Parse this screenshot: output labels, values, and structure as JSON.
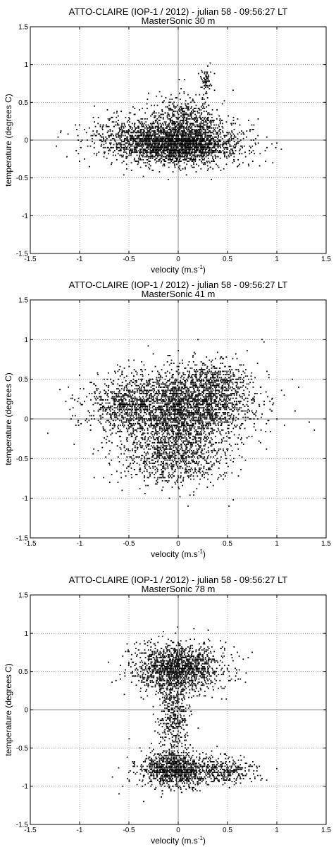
{
  "chart_data": [
    {
      "type": "scatter",
      "title": "ATTO-CLAIRE (IOP-1 / 2012) - julian 58 - 09:56:27 LT",
      "subtitle": "MasterSonic 30 m",
      "xlabel": "velocity (m.s",
      "xlabel_sup": "-1",
      "xlabel_end": ")",
      "ylabel": "temperature (degrees C)",
      "xlim": [
        -1.5,
        1.5
      ],
      "ylim": [
        -1.5,
        1.5
      ],
      "xticks": [
        -1.5,
        -1,
        -0.5,
        0,
        0.5,
        1,
        1.5
      ],
      "yticks": [
        -1.5,
        -1,
        -0.5,
        0,
        0.5,
        1,
        1.5
      ],
      "grid": true,
      "marker_color": "#000000",
      "clusters": [
        {
          "cx": 0.0,
          "cy": -0.05,
          "sx": 0.3,
          "sy": 0.14,
          "n": 2400
        },
        {
          "cx": -0.55,
          "cy": 0.05,
          "sx": 0.22,
          "sy": 0.14,
          "n": 350
        },
        {
          "cx": 0.05,
          "cy": 0.3,
          "sx": 0.18,
          "sy": 0.16,
          "n": 450
        },
        {
          "cx": 0.28,
          "cy": 0.78,
          "sx": 0.03,
          "sy": 0.08,
          "n": 70
        }
      ],
      "points": [
        [
          -1.0,
          0.2
        ],
        [
          -0.95,
          -0.25
        ],
        [
          0.95,
          -0.05
        ],
        [
          1.0,
          -0.04
        ],
        [
          -0.9,
          -0.35
        ],
        [
          -0.85,
          0.45
        ],
        [
          0.6,
          -0.35
        ],
        [
          0.9,
          -0.1
        ],
        [
          0.3,
          0.98
        ],
        [
          0.27,
          0.9
        ]
      ]
    },
    {
      "type": "scatter",
      "title": "ATTO-CLAIRE (IOP-1 / 2012) - julian 58 - 09:56:27 LT",
      "subtitle": "MasterSonic 41 m",
      "xlabel": "velocity (m.s",
      "xlabel_sup": "-1",
      "xlabel_end": ")",
      "ylabel": "temperature (degrees C)",
      "xlim": [
        -1.5,
        1.5
      ],
      "ylim": [
        -1.5,
        1.5
      ],
      "xticks": [
        -1.5,
        -1,
        -0.5,
        0,
        0.5,
        1,
        1.5
      ],
      "yticks": [
        -1.5,
        -1,
        -0.5,
        0,
        0.5,
        1,
        1.5
      ],
      "grid": true,
      "marker_color": "#000000",
      "clusters": [
        {
          "cx": 0.0,
          "cy": 0.15,
          "sx": 0.38,
          "sy": 0.22,
          "n": 2600
        },
        {
          "cx": -0.05,
          "cy": -0.45,
          "sx": 0.28,
          "sy": 0.2,
          "n": 1000
        },
        {
          "cx": 0.35,
          "cy": 0.45,
          "sx": 0.2,
          "sy": 0.15,
          "n": 500
        },
        {
          "cx": -0.6,
          "cy": 0.2,
          "sx": 0.18,
          "sy": 0.15,
          "n": 300
        }
      ],
      "points": [
        [
          -1.2,
          0.37
        ],
        [
          0.85,
          1.0
        ],
        [
          0.87,
          0.97
        ],
        [
          0.2,
          1.0
        ],
        [
          0.95,
          0.1
        ],
        [
          -1.0,
          0.55
        ],
        [
          0.1,
          -1.1
        ],
        [
          0.95,
          0.25
        ]
      ]
    },
    {
      "type": "scatter",
      "title": "ATTO-CLAIRE (IOP-1 / 2012) - julian 58 - 09:56:27 LT",
      "subtitle": "MasterSonic 78 m",
      "xlabel": "velocity (m.s",
      "xlabel_sup": "-1",
      "xlabel_end": ")",
      "ylabel": "temperature (degrees C)",
      "xlim": [
        -1.5,
        1.5
      ],
      "ylim": [
        -1.5,
        1.5
      ],
      "xticks": [
        -1.5,
        -1,
        -0.5,
        0,
        0.5,
        1,
        1.5
      ],
      "yticks": [
        -1.5,
        -1,
        -0.5,
        0,
        0.5,
        1,
        1.5
      ],
      "grid": true,
      "marker_color": "#000000",
      "clusters": [
        {
          "cx": 0.0,
          "cy": 0.55,
          "sx": 0.22,
          "sy": 0.16,
          "n": 1500
        },
        {
          "cx": -0.05,
          "cy": -0.78,
          "sx": 0.18,
          "sy": 0.12,
          "n": 1000
        },
        {
          "cx": 0.4,
          "cy": -0.8,
          "sx": 0.2,
          "sy": 0.08,
          "n": 350
        },
        {
          "cx": -0.05,
          "cy": -0.1,
          "sx": 0.08,
          "sy": 0.28,
          "n": 400
        }
      ],
      "points": [
        [
          0.75,
          0.75
        ],
        [
          1.0,
          -0.77
        ],
        [
          -0.6,
          -1.1
        ],
        [
          0.6,
          0.75
        ],
        [
          -0.35,
          -1.2
        ],
        [
          0.85,
          -0.9
        ]
      ]
    }
  ]
}
